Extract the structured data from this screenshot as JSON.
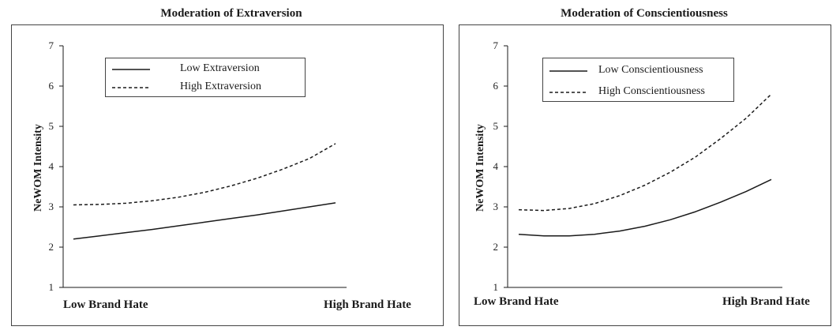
{
  "chart_data": [
    {
      "type": "line",
      "title": "Moderation of Extraversion",
      "ylabel": "NeWOM Intensity",
      "xlabel": "",
      "categories": [
        "Low Brand Hate",
        "High Brand Hate"
      ],
      "ylim": [
        1,
        7
      ],
      "yticks": [
        "1",
        "2",
        "3",
        "4",
        "5",
        "6",
        "7"
      ],
      "legend": "top-left inside",
      "x": [
        0,
        0.1,
        0.2,
        0.3,
        0.4,
        0.5,
        0.6,
        0.7,
        0.8,
        0.9,
        1.0
      ],
      "series": [
        {
          "name": "Low Extraversion",
          "style": "solid",
          "color": "#1a1a1a",
          "values": [
            2.2,
            2.28,
            2.36,
            2.44,
            2.53,
            2.62,
            2.71,
            2.8,
            2.9,
            3.0,
            3.1
          ]
        },
        {
          "name": "High Extraversion",
          "style": "dashed",
          "color": "#1a1a1a",
          "values": [
            3.05,
            3.06,
            3.09,
            3.15,
            3.24,
            3.36,
            3.52,
            3.71,
            3.94,
            4.2,
            4.57
          ]
        }
      ]
    },
    {
      "type": "line",
      "title": "Moderation of Conscientiousness",
      "ylabel": "NeWOM Intensity",
      "xlabel": "",
      "categories": [
        "Low Brand Hate",
        "High Brand Hate"
      ],
      "ylim": [
        1,
        7
      ],
      "yticks": [
        "1",
        "2",
        "3",
        "4",
        "5",
        "6",
        "7"
      ],
      "legend": "top-left inside",
      "x": [
        0,
        0.1,
        0.2,
        0.3,
        0.4,
        0.5,
        0.6,
        0.7,
        0.8,
        0.9,
        1.0
      ],
      "series": [
        {
          "name": "Low Conscientiousness",
          "style": "solid",
          "color": "#1a1a1a",
          "values": [
            2.32,
            2.28,
            2.28,
            2.32,
            2.4,
            2.52,
            2.68,
            2.88,
            3.12,
            3.38,
            3.68
          ]
        },
        {
          "name": "High Conscientiousness",
          "style": "dashed",
          "color": "#1a1a1a",
          "values": [
            2.93,
            2.91,
            2.96,
            3.08,
            3.28,
            3.54,
            3.86,
            4.24,
            4.7,
            5.2,
            5.8
          ]
        }
      ]
    }
  ]
}
